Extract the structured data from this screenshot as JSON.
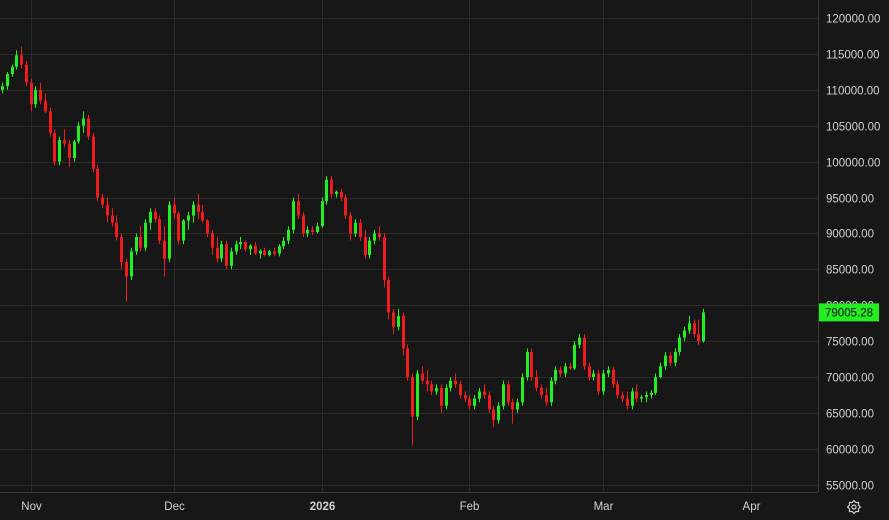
{
  "colors": {
    "background": "#171717",
    "grid": "#2a2a2a",
    "text": "#d1d1d1",
    "up": "#22ee22",
    "down": "#ee1c1c",
    "price_tag": "#22ee22"
  },
  "settings_icon": "settings-gear-icon",
  "chart_data": {
    "type": "candlestick",
    "title": "",
    "xlabel": "",
    "ylabel": "",
    "ylim": [
      54000,
      122500
    ],
    "grid": true,
    "y_ticks": [
      "120000.00",
      "115000.00",
      "110000.00",
      "105000.00",
      "100000.00",
      "95000.00",
      "90000.00",
      "85000.00",
      "80000.00",
      "75000.00",
      "70000.00",
      "65000.00",
      "60000.00",
      "55000.00"
    ],
    "y_tick_values": [
      120000,
      115000,
      110000,
      105000,
      100000,
      95000,
      90000,
      85000,
      80000,
      75000,
      70000,
      65000,
      60000,
      55000
    ],
    "x_ticks": [
      {
        "label": "Nov",
        "index": 6
      },
      {
        "label": "Dec",
        "index": 36
      },
      {
        "label": "2026",
        "index": 67,
        "bold": true
      },
      {
        "label": "Feb",
        "index": 98
      },
      {
        "label": "Mar",
        "index": 126
      },
      {
        "label": "Apr",
        "index": 157
      }
    ],
    "last_price_label": "79005.28",
    "last_price": 79005.28,
    "candles": [
      [
        110000,
        111000,
        109500,
        110500
      ],
      [
        110500,
        112500,
        110000,
        112200
      ],
      [
        112200,
        113500,
        111800,
        113200
      ],
      [
        113200,
        115500,
        112800,
        114800
      ],
      [
        114800,
        116000,
        113000,
        113500
      ],
      [
        113500,
        114000,
        110500,
        111000
      ],
      [
        111000,
        111500,
        107000,
        108000
      ],
      [
        108000,
        110500,
        107500,
        110000
      ],
      [
        110000,
        111000,
        108000,
        108500
      ],
      [
        108500,
        109500,
        106800,
        107000
      ],
      [
        107000,
        107500,
        103500,
        104000
      ],
      [
        104000,
        104500,
        99500,
        100000
      ],
      [
        100000,
        103500,
        99500,
        103000
      ],
      [
        103000,
        104500,
        102000,
        102500
      ],
      [
        102500,
        103000,
        99200,
        100500
      ],
      [
        100500,
        103000,
        100000,
        102800
      ],
      [
        102800,
        105500,
        102500,
        105000
      ],
      [
        105000,
        107000,
        104000,
        106000
      ],
      [
        106000,
        106500,
        103000,
        103500
      ],
      [
        103500,
        104000,
        98500,
        99000
      ],
      [
        99000,
        99500,
        94500,
        95000
      ],
      [
        95000,
        95500,
        93500,
        94000
      ],
      [
        94000,
        95000,
        91500,
        92500
      ],
      [
        92500,
        93500,
        91000,
        91500
      ],
      [
        91500,
        92500,
        89000,
        89500
      ],
      [
        89500,
        90000,
        85000,
        86000
      ],
      [
        86000,
        86500,
        80500,
        84000
      ],
      [
        84000,
        88000,
        83500,
        87500
      ],
      [
        87500,
        90000,
        87000,
        89500
      ],
      [
        89500,
        91000,
        87500,
        88000
      ],
      [
        88000,
        92000,
        87500,
        91500
      ],
      [
        91500,
        93500,
        90500,
        93000
      ],
      [
        93000,
        93500,
        91500,
        92000
      ],
      [
        92000,
        92500,
        88500,
        89000
      ],
      [
        89000,
        91000,
        84000,
        86500
      ],
      [
        86500,
        94500,
        86000,
        94000
      ],
      [
        94000,
        95000,
        92000,
        92800
      ],
      [
        92800,
        93000,
        88500,
        89000
      ],
      [
        89000,
        92000,
        88500,
        91800
      ],
      [
        91800,
        93000,
        90500,
        92500
      ],
      [
        92500,
        94500,
        91500,
        94000
      ],
      [
        94000,
        95500,
        92000,
        93000
      ],
      [
        93000,
        94000,
        91500,
        91800
      ],
      [
        91800,
        92000,
        89500,
        90000
      ],
      [
        90000,
        90500,
        87000,
        88000
      ],
      [
        88000,
        89500,
        86000,
        86500
      ],
      [
        86500,
        89000,
        86000,
        88500
      ],
      [
        88500,
        89000,
        85000,
        85500
      ],
      [
        85500,
        88000,
        85000,
        87500
      ],
      [
        87500,
        89000,
        87000,
        88500
      ],
      [
        88500,
        89500,
        87800,
        88800
      ],
      [
        88800,
        89000,
        87500,
        87800
      ],
      [
        87800,
        88500,
        87000,
        88300
      ],
      [
        88300,
        88800,
        87000,
        87200
      ],
      [
        87200,
        87800,
        86500,
        87600
      ],
      [
        87600,
        88000,
        86800,
        87000
      ],
      [
        87000,
        87700,
        86800,
        87500
      ],
      [
        87500,
        88000,
        86900,
        87200
      ],
      [
        87200,
        88500,
        86800,
        88200
      ],
      [
        88200,
        89500,
        87800,
        89000
      ],
      [
        89000,
        91000,
        88500,
        90500
      ],
      [
        90500,
        95000,
        90000,
        94500
      ],
      [
        94500,
        95500,
        92000,
        92500
      ],
      [
        92500,
        93000,
        89500,
        90000
      ],
      [
        90000,
        91000,
        89500,
        90500
      ],
      [
        90500,
        91000,
        89800,
        90200
      ],
      [
        90200,
        91500,
        90000,
        91000
      ],
      [
        91000,
        95000,
        90800,
        94500
      ],
      [
        94500,
        98000,
        94000,
        97500
      ],
      [
        97500,
        98000,
        95000,
        95500
      ],
      [
        95500,
        96000,
        95000,
        95800
      ],
      [
        95800,
        96200,
        94500,
        95000
      ],
      [
        95000,
        95500,
        92000,
        92500
      ],
      [
        92500,
        93000,
        89000,
        90000
      ],
      [
        90000,
        92000,
        89500,
        91500
      ],
      [
        91500,
        92000,
        89000,
        89500
      ],
      [
        89500,
        90500,
        86500,
        87000
      ],
      [
        87000,
        89500,
        86500,
        89000
      ],
      [
        89000,
        90500,
        88500,
        90000
      ],
      [
        90000,
        91000,
        89000,
        89500
      ],
      [
        89500,
        90000,
        82500,
        83500
      ],
      [
        83500,
        84000,
        78000,
        79000
      ],
      [
        79000,
        79500,
        76000,
        77000
      ],
      [
        77000,
        79500,
        76500,
        78500
      ],
      [
        78500,
        79000,
        73000,
        74000
      ],
      [
        74000,
        74500,
        69500,
        70000
      ],
      [
        70000,
        70500,
        60500,
        64500
      ],
      [
        64500,
        71000,
        64000,
        70500
      ],
      [
        70500,
        71500,
        69000,
        69500
      ],
      [
        69500,
        71000,
        68000,
        69000
      ],
      [
        69000,
        69500,
        67500,
        68000
      ],
      [
        68000,
        69000,
        67500,
        68500
      ],
      [
        68500,
        69000,
        65000,
        66000
      ],
      [
        66000,
        69000,
        65500,
        68500
      ],
      [
        68500,
        70000,
        68000,
        69500
      ],
      [
        69500,
        70500,
        68500,
        69000
      ],
      [
        69000,
        69500,
        67000,
        67500
      ],
      [
        67500,
        68000,
        66500,
        67000
      ],
      [
        67000,
        67500,
        65500,
        66000
      ],
      [
        66000,
        67500,
        65500,
        67000
      ],
      [
        67000,
        68500,
        66500,
        68000
      ],
      [
        68000,
        69000,
        67000,
        67500
      ],
      [
        67500,
        68000,
        65000,
        65500
      ],
      [
        65500,
        66000,
        63000,
        64000
      ],
      [
        64000,
        66500,
        63500,
        66000
      ],
      [
        66000,
        69500,
        65500,
        69000
      ],
      [
        69000,
        69500,
        66000,
        66500
      ],
      [
        66500,
        67000,
        63500,
        65500
      ],
      [
        65500,
        67000,
        65000,
        66500
      ],
      [
        66500,
        70500,
        66000,
        70000
      ],
      [
        70000,
        74000,
        69500,
        73500
      ],
      [
        73500,
        74000,
        69500,
        70000
      ],
      [
        70000,
        71000,
        68000,
        68500
      ],
      [
        68500,
        69000,
        67000,
        67500
      ],
      [
        67500,
        68500,
        66000,
        66500
      ],
      [
        66500,
        70000,
        66000,
        69500
      ],
      [
        69500,
        71500,
        69000,
        71000
      ],
      [
        71000,
        71500,
        70000,
        70500
      ],
      [
        70500,
        72000,
        70000,
        71500
      ],
      [
        71500,
        72000,
        71000,
        71200
      ],
      [
        71200,
        75000,
        71000,
        74500
      ],
      [
        74500,
        76000,
        74000,
        75500
      ],
      [
        75500,
        76000,
        71000,
        71500
      ],
      [
        71500,
        72000,
        69500,
        70000
      ],
      [
        70000,
        71000,
        69500,
        70500
      ],
      [
        70500,
        71000,
        67500,
        68000
      ],
      [
        68000,
        71000,
        67500,
        70500
      ],
      [
        70500,
        71500,
        70000,
        71000
      ],
      [
        71000,
        71500,
        68500,
        69000
      ],
      [
        69000,
        69500,
        67000,
        67500
      ],
      [
        67500,
        68000,
        66500,
        67000
      ],
      [
        67000,
        68000,
        65500,
        66000
      ],
      [
        66000,
        68500,
        65500,
        68000
      ],
      [
        68000,
        69000,
        66500,
        67000
      ],
      [
        67000,
        67500,
        66500,
        67200
      ],
      [
        67200,
        68000,
        66500,
        67500
      ],
      [
        67500,
        68200,
        67000,
        67800
      ],
      [
        67800,
        70500,
        67500,
        70000
      ],
      [
        70000,
        72000,
        69800,
        71500
      ],
      [
        71500,
        73500,
        71000,
        73000
      ],
      [
        73000,
        73500,
        71500,
        72000
      ],
      [
        72000,
        74000,
        71500,
        73500
      ],
      [
        73500,
        76000,
        73000,
        75500
      ],
      [
        75500,
        77000,
        75000,
        76500
      ],
      [
        76500,
        78500,
        76000,
        77500
      ],
      [
        77500,
        78000,
        75500,
        76000
      ],
      [
        76000,
        78000,
        74500,
        75000
      ],
      [
        75000,
        79500,
        74800,
        79005.28
      ]
    ]
  }
}
